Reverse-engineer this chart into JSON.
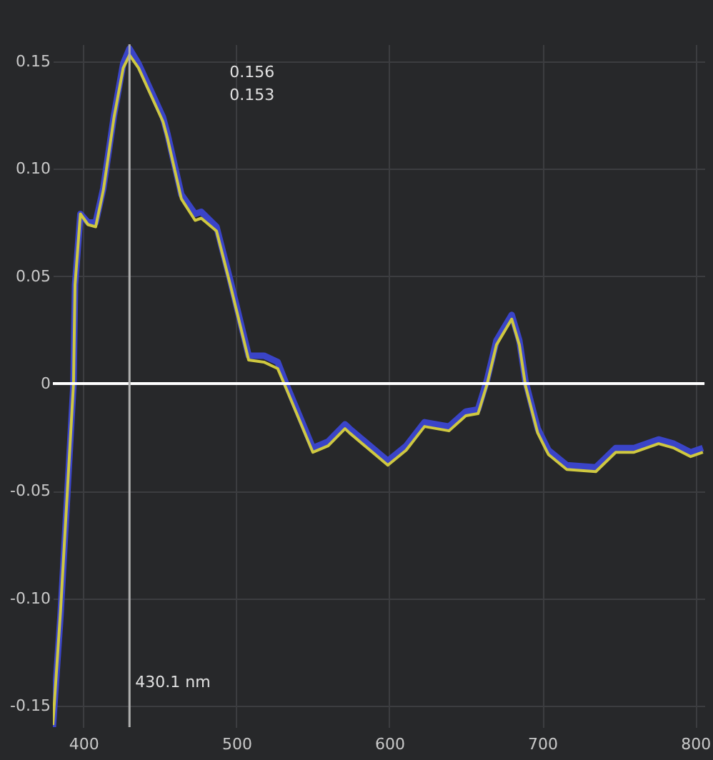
{
  "chart_data": {
    "type": "line",
    "x": [
      380,
      385,
      393.5,
      394.5,
      398,
      403,
      408,
      413,
      420,
      426,
      430.1,
      436,
      452,
      455,
      464,
      473,
      477,
      487,
      496,
      508,
      518,
      527,
      533,
      550,
      560,
      571,
      574,
      599,
      611,
      623,
      639,
      650,
      658,
      664,
      670,
      680,
      685,
      689,
      697,
      704,
      716,
      735,
      748,
      760,
      776,
      786,
      797,
      805
    ],
    "series": [
      {
        "color": "#3a44c8",
        "values": [
          -0.16,
          -0.108,
          0,
          0.046,
          0.079,
          0.075,
          0.075,
          0.091,
          0.125,
          0.149,
          0.156,
          0.149,
          0.124,
          0.116,
          0.088,
          0.079,
          0.08,
          0.073,
          0.048,
          0.013,
          0.013,
          0.01,
          -0.001,
          -0.03,
          -0.027,
          -0.019,
          -0.021,
          -0.036,
          -0.029,
          -0.018,
          -0.02,
          -0.013,
          -0.012,
          0.002,
          0.02,
          0.032,
          0.02,
          0.001,
          -0.021,
          -0.031,
          -0.038,
          -0.039,
          -0.03,
          -0.03,
          -0.026,
          -0.028,
          -0.032,
          -0.03
        ]
      },
      {
        "color": "#cfc840",
        "values": [
          -0.159,
          -0.106,
          0,
          0.046,
          0.079,
          0.074,
          0.073,
          0.09,
          0.124,
          0.147,
          0.153,
          0.147,
          0.122,
          0.114,
          0.086,
          0.076,
          0.077,
          0.071,
          0.046,
          0.011,
          0.01,
          0.007,
          -0.003,
          -0.032,
          -0.029,
          -0.021,
          -0.023,
          -0.038,
          -0.031,
          -0.02,
          -0.022,
          -0.015,
          -0.014,
          0,
          0.018,
          0.03,
          0.018,
          -0.001,
          -0.023,
          -0.033,
          -0.04,
          -0.041,
          -0.032,
          -0.032,
          -0.028,
          -0.03,
          -0.034,
          -0.032
        ]
      }
    ],
    "xlim": [
      380,
      806
    ],
    "xticks": [
      400,
      500,
      600,
      700,
      800
    ],
    "ylim": [
      -0.16,
      0.158
    ],
    "yticks": [
      {
        "value": -0.15,
        "label": "-0.15"
      },
      {
        "value": -0.1,
        "label": "-0.10"
      },
      -0.05,
      0,
      0.05,
      {
        "value": 0.1,
        "label": "0.10"
      },
      0.15
    ],
    "grid": true,
    "ref_lines": [
      {
        "axis": "y",
        "value": 0,
        "color": "#ffffff"
      },
      {
        "axis": "x",
        "value": 430.1,
        "label": "430.1 nm",
        "color": "#b0b0b0"
      }
    ],
    "annotations": [
      "0.156",
      "0.153"
    ]
  }
}
